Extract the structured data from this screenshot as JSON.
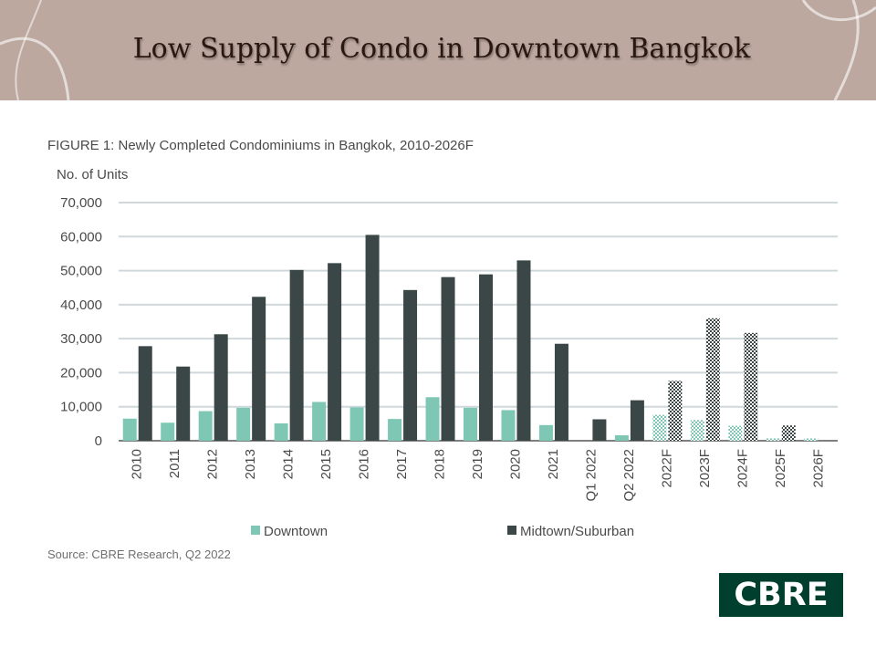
{
  "header": {
    "title": "Low Supply of Condo in Downtown Bangkok"
  },
  "figure": {
    "caption": "FIGURE 1: Newly Completed Condominiums in Bangkok, 2010-2026F",
    "source": "Source: CBRE Research, Q2 2022"
  },
  "logo": {
    "text": "CBRE"
  },
  "colors": {
    "downtown": "#7fc7b5",
    "midtown": "#3a4746",
    "banner": "#bca89f",
    "grid": "#cfd8dc",
    "logo_bg": "#003f2d"
  },
  "chart_data": {
    "type": "bar",
    "ylabel": "No. of Units",
    "ylim": [
      0,
      70000
    ],
    "yticks": [
      "0",
      "10,000",
      "20,000",
      "30,000",
      "40,000",
      "50,000",
      "60,000",
      "70,000"
    ],
    "ytick_values": [
      0,
      10000,
      20000,
      30000,
      40000,
      50000,
      60000,
      70000
    ],
    "categories": [
      "2010",
      "2011",
      "2012",
      "2013",
      "2014",
      "2015",
      "2016",
      "2017",
      "2018",
      "2019",
      "2020",
      "2021",
      "Q1 2022",
      "Q2 2022",
      "2022F",
      "2023F",
      "2024F",
      "2025F",
      "2026F"
    ],
    "forecast_from_index": 14,
    "series": [
      {
        "name": "Downtown",
        "values": [
          6500,
          5300,
          8700,
          9700,
          5100,
          11400,
          9800,
          6400,
          12800,
          9700,
          9000,
          4600,
          0,
          1600,
          7600,
          6100,
          4400,
          700,
          700
        ]
      },
      {
        "name": "Midtown/Suburban",
        "values": [
          27800,
          21800,
          31300,
          42300,
          50200,
          52200,
          60500,
          44300,
          48100,
          48900,
          53000,
          28500,
          6300,
          11900,
          17600,
          36000,
          31700,
          4500,
          0
        ]
      }
    ],
    "legend": [
      "Downtown",
      "Midtown/Suburban"
    ],
    "legend_position": "bottom",
    "grid": true
  }
}
